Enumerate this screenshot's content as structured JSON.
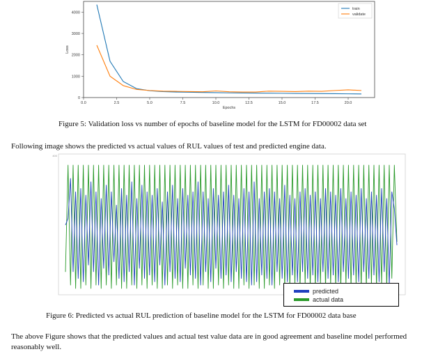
{
  "figure5": {
    "caption": "Figure 5: Validation loss vs number of epochs of baseline model for the LSTM for FD00002 data set",
    "chart_data": {
      "type": "line",
      "title": "",
      "xlabel": "Epochs",
      "ylabel": "Loss",
      "xlim": [
        0,
        22
      ],
      "ylim": [
        0,
        4500
      ],
      "x_ticks": [
        "0.0",
        "2.5",
        "5.0",
        "7.5",
        "10.0",
        "12.5",
        "15.0",
        "17.5",
        "20.0"
      ],
      "y_ticks": [
        "0",
        "1000",
        "2000",
        "3000",
        "4000"
      ],
      "legend_position": "top-right",
      "grid": false,
      "x": [
        1,
        2,
        3,
        4,
        5,
        6,
        7,
        8,
        9,
        10,
        11,
        12,
        13,
        14,
        15,
        16,
        17,
        18,
        19,
        20,
        21
      ],
      "series": [
        {
          "name": "train",
          "color": "#1f77b4",
          "values": [
            4350,
            1700,
            750,
            420,
            320,
            280,
            260,
            250,
            240,
            230,
            220,
            215,
            210,
            205,
            200,
            195,
            190,
            185,
            180,
            175,
            170
          ]
        },
        {
          "name": "validate",
          "color": "#ff7f0e",
          "values": [
            2450,
            1000,
            560,
            380,
            330,
            300,
            290,
            280,
            270,
            310,
            270,
            260,
            260,
            300,
            290,
            280,
            300,
            290,
            330,
            360,
            330
          ]
        }
      ]
    }
  },
  "intro_text": "Following image shows the predicted vs actual values of RUL values of test and predicted engine data.",
  "figure6": {
    "caption": "Figure 6: Predicted vs actual RUL prediction of baseline model for the LSTM for FD00002 data base",
    "chart_data": {
      "type": "line",
      "ylim": [
        0,
        400
      ],
      "y_ticks_visible": [
        "400"
      ],
      "grid": false,
      "legend_position": "bottom-right",
      "series": [
        {
          "name": "predicted",
          "color": "#1f3fbf",
          "values": [
            200,
            220,
            340,
            60,
            300,
            40,
            310,
            30,
            290,
            80,
            330,
            60,
            300,
            20,
            280,
            70,
            320,
            50,
            300,
            90,
            260,
            40,
            310,
            30,
            290,
            60,
            330,
            20,
            280,
            70,
            320,
            40,
            300,
            50,
            290,
            30,
            310,
            80,
            270,
            20,
            300,
            60,
            320,
            40,
            280,
            30,
            310,
            70,
            290,
            50,
            300,
            40,
            330,
            20,
            300,
            60,
            280,
            30,
            310,
            70,
            290,
            40,
            300,
            50,
            320,
            30,
            290,
            60,
            280,
            40,
            310,
            30,
            300,
            20,
            330,
            30,
            280,
            50,
            300,
            40,
            310,
            20,
            300,
            60,
            280,
            40,
            320,
            30,
            290,
            50,
            280,
            30,
            300,
            60,
            310,
            40,
            290,
            50,
            300,
            30,
            280,
            60,
            310,
            40,
            300,
            50,
            290,
            30,
            310,
            60,
            280,
            40,
            300,
            50,
            290,
            30,
            310,
            60,
            280,
            40,
            300,
            50,
            290,
            30,
            310,
            60,
            280,
            20,
            300,
            250,
            140
          ]
        },
        {
          "name": "actual data",
          "color": "#2a9a2a",
          "values": [
            60,
            380,
            20,
            380,
            10,
            380,
            10,
            380,
            20,
            380,
            10,
            380,
            20,
            380,
            10,
            380,
            20,
            380,
            10,
            380,
            20,
            380,
            10,
            380,
            10,
            380,
            20,
            380,
            10,
            380,
            20,
            380,
            10,
            380,
            20,
            380,
            10,
            380,
            10,
            380,
            20,
            380,
            10,
            380,
            20,
            380,
            10,
            380,
            10,
            380,
            20,
            380,
            10,
            380,
            20,
            380,
            10,
            380,
            10,
            380,
            20,
            380,
            10,
            380,
            20,
            380,
            10,
            380,
            10,
            380,
            20,
            380,
            10,
            380,
            20,
            380,
            10,
            380,
            10,
            380,
            20,
            380,
            10,
            380,
            20,
            380,
            10,
            380,
            10,
            380,
            20,
            380,
            10,
            380,
            20,
            380,
            10,
            380,
            10,
            380,
            20,
            380,
            10,
            380,
            20,
            380,
            10,
            380,
            10,
            380,
            20,
            380,
            10,
            380,
            20,
            380,
            10,
            380,
            10,
            380,
            20,
            380,
            10,
            380,
            20,
            380,
            10,
            380,
            40,
            380,
            150
          ]
        }
      ]
    }
  },
  "conclusion_text": "The above Figure shows that the predicted values and actual test value data are in good agreement and baseline model performed reasonably well."
}
